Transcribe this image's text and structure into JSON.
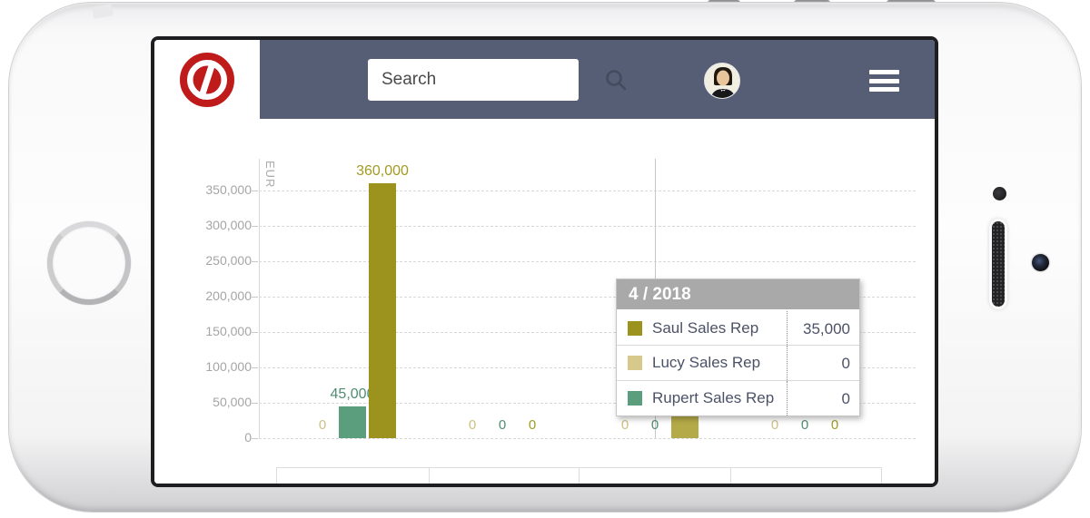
{
  "header": {
    "search_placeholder": "Search",
    "navbar_color": "#565e75",
    "logo_color": "#bf1b1b"
  },
  "chart_data": {
    "type": "bar",
    "ylabel": "EUR",
    "unit": "EUR",
    "ylim": [
      0,
      350000
    ],
    "ytick_step": 50000,
    "yticks": [
      "350,000",
      "300,000",
      "250,000",
      "200,000",
      "150,000",
      "100,000",
      "50,000",
      "0"
    ],
    "grid": true,
    "legend_position": "none-visible",
    "categories": [
      "",
      "",
      "4 / 2018",
      ""
    ],
    "series": [
      {
        "name": "Lucy Sales Rep",
        "color": "#d7c98c",
        "label_color": "#cfc083",
        "values": [
          0,
          0,
          0,
          0
        ],
        "labels": [
          "0",
          "0",
          "0",
          "0"
        ]
      },
      {
        "name": "Rupert Sales Rep",
        "color": "#5b9e7e",
        "label_color": "#4f8e71",
        "values": [
          45000,
          0,
          0,
          0
        ],
        "labels": [
          "45,000",
          "0",
          "0",
          "0"
        ]
      },
      {
        "name": "Saul Sales Rep",
        "color": "#9c921e",
        "label_color": "#a29a22",
        "highlight_color": "#b4aa48",
        "values": [
          360000,
          0,
          35000,
          0
        ],
        "labels": [
          "360,000",
          "0",
          "35,000",
          "0"
        ]
      }
    ],
    "hover_group": 2,
    "tooltip": {
      "title": "4 / 2018",
      "rows": [
        {
          "name": "Saul Sales Rep",
          "color": "#9c921e",
          "value": "35,000"
        },
        {
          "name": "Lucy Sales Rep",
          "color": "#d7c98c",
          "value": "0"
        },
        {
          "name": "Rupert Sales Rep",
          "color": "#5b9e7e",
          "value": "0"
        }
      ]
    }
  }
}
